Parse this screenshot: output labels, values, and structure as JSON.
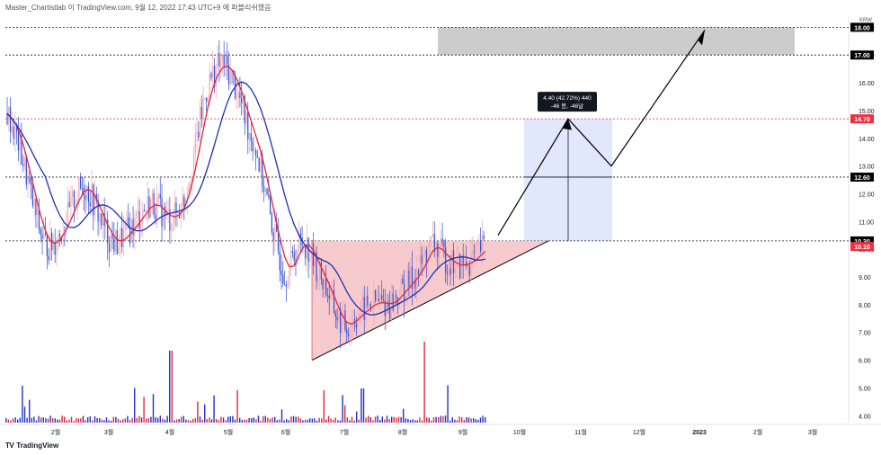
{
  "header": {
    "text": "Master_Chartistlab 이 TradingView.com, 9월 12, 2022 17:43 UTC+9 에 퍼블리쉬했음"
  },
  "footer": {
    "logo_text": "TV",
    "brand": "TradingView"
  },
  "colors": {
    "up_candle": "#f3a6ae",
    "down_candle": "#2e4fd1",
    "ma_fast": "#e0283a",
    "ma_slow": "#1f2fb5",
    "triangle_fill": "#f6c2c5",
    "target_box": "#c9c9c9",
    "projection_box": "#e1e8fb",
    "vol_up": "#e0283a",
    "vol_down": "#2530c7",
    "price_label_dark": "#000000",
    "price_label_red": "#f0303e"
  },
  "chart_data": {
    "type": "candlestick",
    "title": "",
    "currency_label": "KRW",
    "x_tick_labels": [
      "2월",
      "3월",
      "4월",
      "5월",
      "6월",
      "7월",
      "8월",
      "9월",
      "10월",
      "11월",
      "12월",
      "2023",
      "2월",
      "3월"
    ],
    "y_ticks": [
      4.0,
      5.0,
      6.0,
      7.0,
      8.0,
      9.0,
      10.0,
      11.0,
      12.0,
      13.0,
      14.0,
      15.0,
      16.0,
      17.0,
      18.0
    ],
    "y_range": [
      3.75,
      18.4
    ],
    "price_labels": [
      {
        "value": 18.0,
        "text": "18.00",
        "style": "dark"
      },
      {
        "value": 17.0,
        "text": "17.00",
        "style": "dark"
      },
      {
        "value": 14.7,
        "text": "14.70",
        "style": "red"
      },
      {
        "value": 12.6,
        "text": "12.60",
        "style": "dark"
      },
      {
        "value": 10.3,
        "text": "10.30",
        "style": "dark"
      },
      {
        "value": 10.1,
        "text": "10.10",
        "style": "red"
      }
    ],
    "horizontal_levels": [
      18.0,
      17.0,
      14.7,
      12.6,
      10.3
    ],
    "target_zone": {
      "from": 17.0,
      "to": 18.0
    },
    "projection": {
      "entry": 10.3,
      "target": 14.7,
      "stop": 12.6,
      "label_line1": "4.40 (42.72%) 440",
      "label_line2": "-46 봉, -46날"
    },
    "approx_close_series": {
      "note": "",
      "values": [
        14.9,
        14.5,
        14.0,
        13.4,
        12.7,
        11.9,
        11.2,
        10.6,
        10.2,
        10.1,
        10.3,
        10.6,
        10.9,
        11.3,
        11.8,
        12.1,
        12.3,
        12.1,
        11.7,
        11.3,
        10.9,
        10.5,
        10.3,
        10.2,
        10.4,
        10.6,
        10.8,
        11.0,
        11.3,
        11.5,
        11.7,
        11.6,
        11.4,
        11.2,
        11.1,
        11.2,
        11.4,
        11.8,
        12.6,
        13.4,
        14.3,
        15.2,
        15.9,
        16.3,
        16.6,
        16.7,
        16.5,
        16.2,
        15.7,
        15.2,
        14.6,
        14.1,
        13.6,
        12.9,
        12.0,
        11.2,
        10.4,
        9.7,
        9.1,
        9.3,
        9.8,
        10.2,
        10.3,
        10.0,
        9.6,
        9.2,
        8.9,
        8.5,
        8.0,
        7.6,
        7.3,
        7.2,
        7.4,
        7.6,
        7.7,
        7.9,
        8.0,
        8.1,
        8.1,
        8.0,
        8.0,
        8.2,
        8.4,
        8.6,
        8.8,
        9.0,
        9.2,
        9.6,
        10.0,
        10.2,
        10.0,
        9.8,
        9.6,
        9.5,
        9.4,
        9.4,
        9.5,
        9.6,
        9.7,
        10.0,
        10.1
      ]
    },
    "drawings": [
      "ascending_triangle",
      "projection_path_arrow",
      "price_range_measure"
    ]
  }
}
